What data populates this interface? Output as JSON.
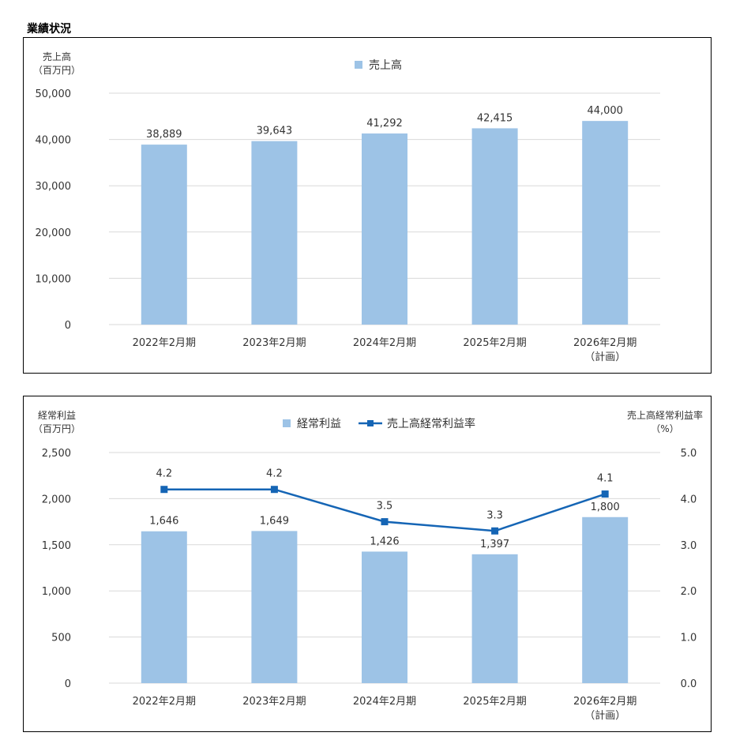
{
  "page": {
    "title": "業績状況"
  },
  "colors": {
    "bar": "#9dc3e6",
    "line": "#1565b5",
    "grid": "#d9d9d9"
  },
  "chart_data": [
    {
      "type": "bar",
      "legend": [
        "売上高"
      ],
      "legend_position": "top",
      "ylabel": [
        "売上高",
        "（百万円）"
      ],
      "categories": [
        [
          "2022年2月期"
        ],
        [
          "2023年2月期"
        ],
        [
          "2024年2月期"
        ],
        [
          "2025年2月期"
        ],
        [
          "2026年2月期",
          "（計画）"
        ]
      ],
      "series": [
        {
          "name": "売上高",
          "values": [
            38889,
            39643,
            41292,
            42415,
            44000
          ],
          "labels": [
            "38,889",
            "39,643",
            "41,292",
            "42,415",
            "44,000"
          ]
        }
      ],
      "ylim": [
        0,
        50000
      ],
      "yticks": [
        "0",
        "10,000",
        "20,000",
        "30,000",
        "40,000",
        "50,000"
      ],
      "grid": true
    },
    {
      "type": "bar+line",
      "legend": [
        "経常利益",
        "売上高経常利益率"
      ],
      "legend_position": "top",
      "ylabel": [
        "経常利益",
        "（百万円）"
      ],
      "y2label": [
        "売上高経常利益率",
        "（%）"
      ],
      "categories": [
        [
          "2022年2月期"
        ],
        [
          "2023年2月期"
        ],
        [
          "2024年2月期"
        ],
        [
          "2025年2月期"
        ],
        [
          "2026年2月期",
          "（計画）"
        ]
      ],
      "series": [
        {
          "name": "経常利益",
          "type": "bar",
          "axis": "left",
          "values": [
            1646,
            1649,
            1426,
            1397,
            1800
          ],
          "labels": [
            "1,646",
            "1,649",
            "1,426",
            "1,397",
            "1,800"
          ]
        },
        {
          "name": "売上高経常利益率",
          "type": "line",
          "axis": "right",
          "values": [
            4.2,
            4.2,
            3.5,
            3.3,
            4.1
          ],
          "labels": [
            "4.2",
            "4.2",
            "3.5",
            "3.3",
            "4.1"
          ]
        }
      ],
      "ylim": [
        0,
        2500
      ],
      "yticks": [
        "0",
        "500",
        "1,000",
        "1,500",
        "2,000",
        "2,500"
      ],
      "y2lim": [
        0,
        5
      ],
      "y2ticks": [
        "0.0",
        "1.0",
        "2.0",
        "3.0",
        "4.0",
        "5.0"
      ],
      "grid": true
    }
  ]
}
